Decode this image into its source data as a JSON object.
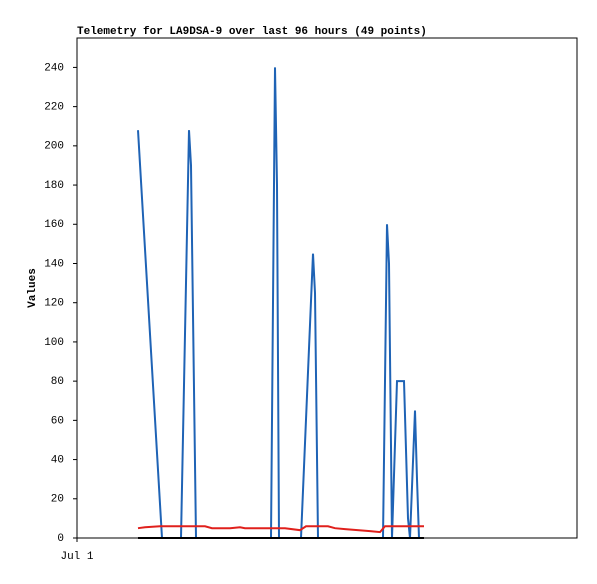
{
  "chart_data": {
    "type": "line",
    "title": "Telemetry for LA9DSA-9 over last 96 hours (49 points)",
    "ylabel": "Values",
    "xlim": [
      0,
      100
    ],
    "xticks": [
      {
        "value": 0,
        "label": "Jul 1"
      }
    ],
    "ylim": [
      0,
      255
    ],
    "yticks": [
      0,
      20,
      40,
      60,
      80,
      100,
      120,
      140,
      160,
      180,
      200,
      220,
      240
    ],
    "series": [
      {
        "color": "#1f63b5",
        "x": [
          12.2,
          17,
          20.8,
          22.4,
          22.8,
          23.8,
          38.8,
          39.6,
          40,
          40.4,
          44.8,
          47.2,
          47.6,
          48.2,
          61.2,
          62,
          62.4,
          63,
          64,
          65.4,
          66.2,
          66.6,
          67.6,
          68,
          68.4
        ],
        "values": [
          208,
          0,
          0,
          208,
          190,
          0,
          0,
          240,
          180,
          0,
          0,
          145,
          125,
          0,
          0,
          160,
          140,
          0,
          80,
          80,
          10,
          0,
          65,
          30,
          0
        ]
      },
      {
        "color": "#e0201c",
        "x": [
          12.2,
          13.6,
          16.6,
          25.6,
          27,
          30.6,
          32.6,
          33.6,
          41.6,
          44.6,
          45.8,
          50.2,
          51.6,
          53.6,
          58.6,
          60.6,
          61.6,
          69.4
        ],
        "values": [
          5,
          5.5,
          6,
          6,
          5,
          5,
          5.5,
          5,
          5,
          4,
          6,
          6,
          5,
          4.5,
          3.5,
          3,
          6,
          6
        ]
      },
      {
        "color": "#000000",
        "x": [
          12.2,
          69.4
        ],
        "values": [
          0,
          0
        ]
      }
    ]
  }
}
